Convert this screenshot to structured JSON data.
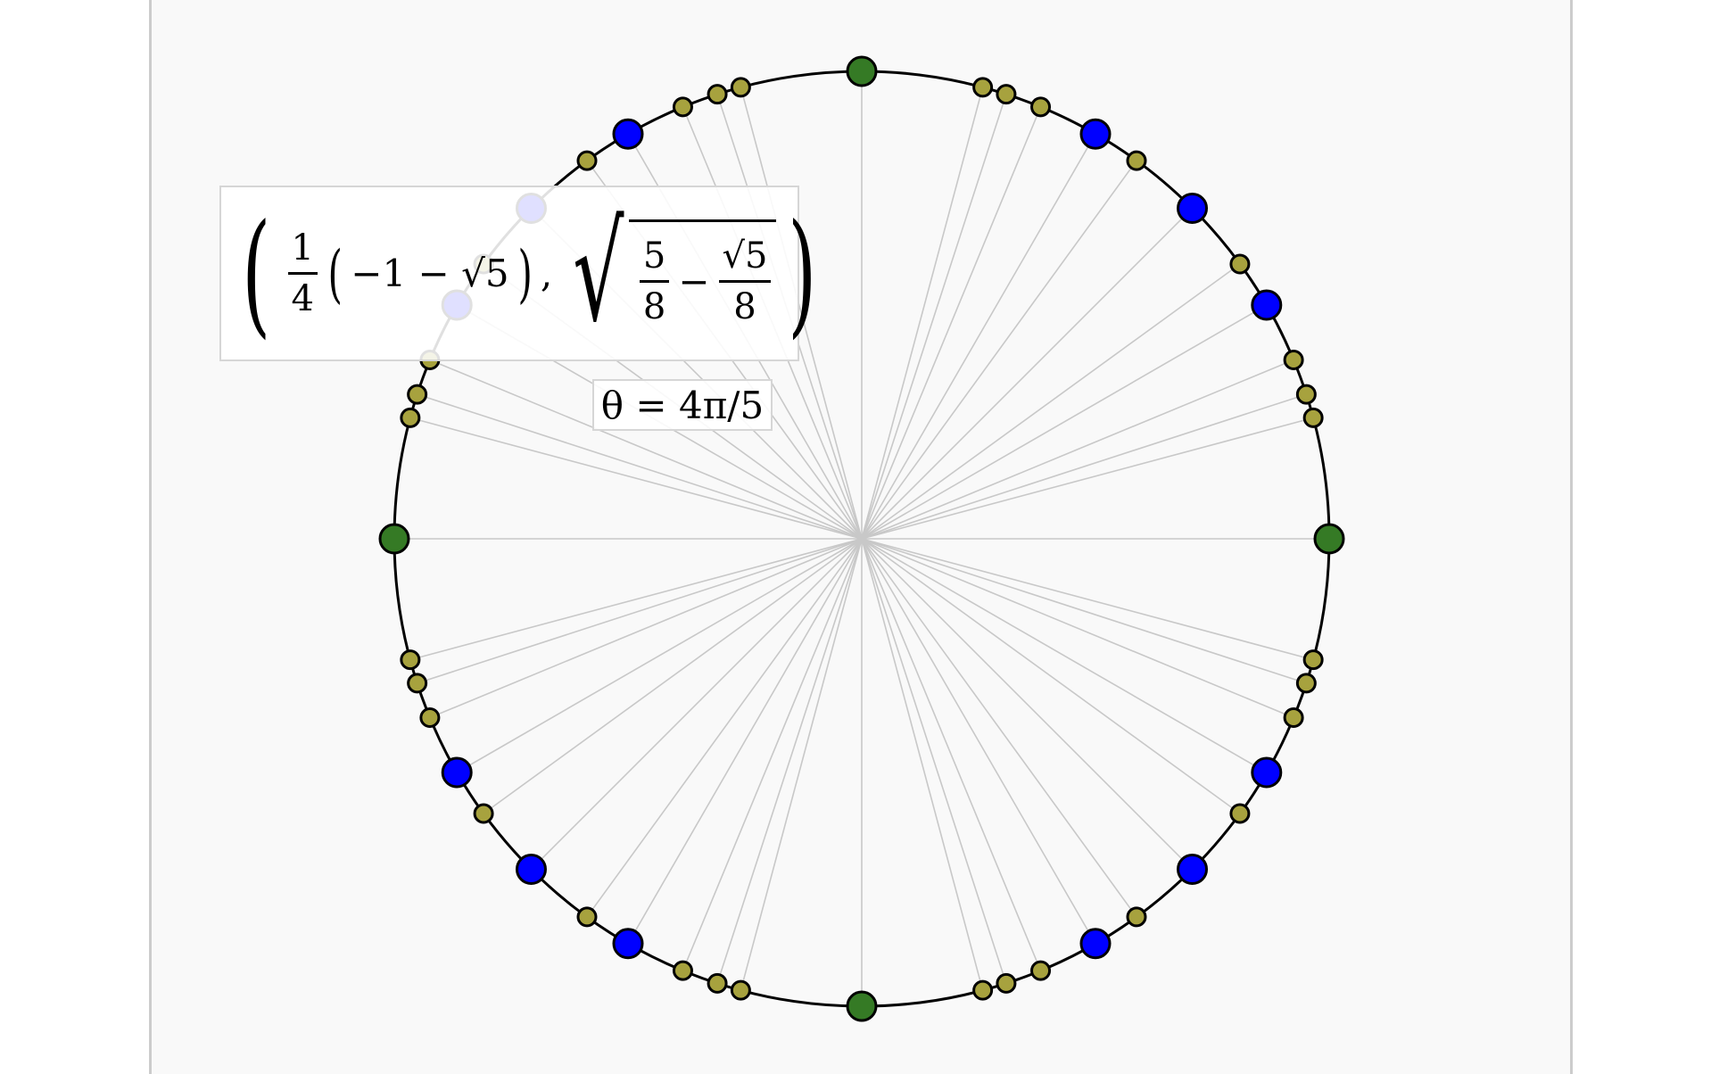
{
  "diagram": {
    "tooltip": {
      "point_label": "(1/4(−1 − √5), √(5/8 − √5/8))",
      "frac_quarter_num": "1",
      "frac_quarter_den": "4",
      "inner_expr": "−1 − √5",
      "comma": ",",
      "frac_five_eighths_num": "5",
      "frac_five_eighths_den": "8",
      "minus": "−",
      "frac_sqrt5_num": "√5",
      "frac_sqrt5_den": "8"
    },
    "angle_label": "θ = 4π/5",
    "highlighted_point_angle": "4π/5",
    "colors": {
      "axis_point": "#357a25",
      "blue_point": "#0000ff",
      "olive_point": "#a7a23e",
      "circle_stroke": "#000000",
      "ray_stroke": "#c8c8c8"
    },
    "point_angles_degrees": {
      "axis_points": [
        0,
        90,
        180,
        270
      ],
      "blue_points": [
        30,
        45,
        60,
        120,
        135,
        150,
        210,
        225,
        240,
        300,
        315,
        330
      ],
      "olive_points": [
        15,
        18,
        22.5,
        36,
        54,
        67.5,
        72,
        75,
        105,
        108,
        112.5,
        126,
        144,
        157.5,
        162,
        165,
        195,
        198,
        202.5,
        216,
        234,
        247.5,
        252,
        255,
        285,
        288,
        292.5,
        306,
        324,
        337.5,
        342,
        345
      ]
    }
  }
}
